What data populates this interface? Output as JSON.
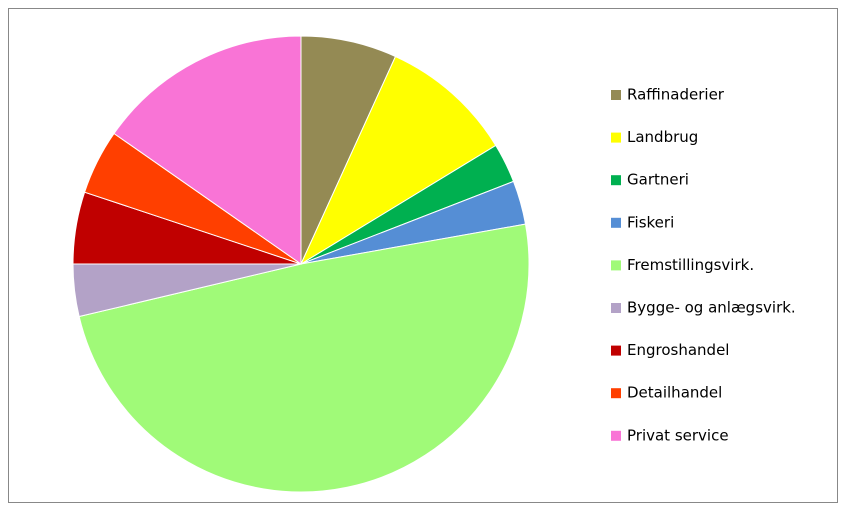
{
  "chart_data": {
    "type": "pie",
    "categories": [
      "Raffinaderier",
      "Landbrug",
      "Gartneri",
      "Fiskeri",
      "Fremstillingsvirk.",
      "Bygge- og anlægsvirk.",
      "Engroshandel",
      "Detailhandel",
      "Privat service"
    ],
    "values": [
      6.8,
      9.5,
      2.8,
      3.1,
      49.1,
      3.7,
      5.1,
      4.6,
      15.3
    ],
    "colors": [
      "#948a54",
      "#ffff00",
      "#00b050",
      "#558ed5",
      "#a0fa78",
      "#b3a2c7",
      "#c00000",
      "#ff3f00",
      "#f974d6"
    ],
    "legend": "right"
  }
}
